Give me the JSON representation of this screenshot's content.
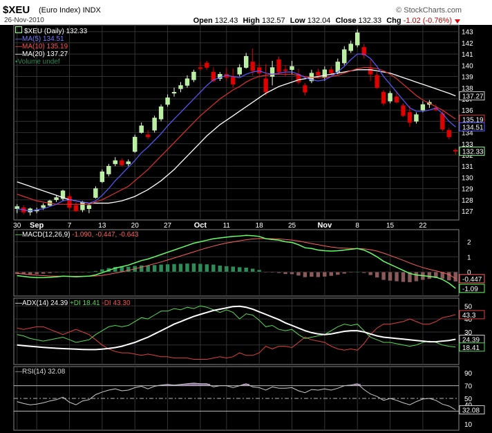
{
  "header": {
    "symbol": "$XEU",
    "name": "(Euro Index)",
    "exchange": "INDX",
    "date": "26-Nov-2010",
    "brand": "© StockCharts.com",
    "open_label": "Open",
    "open": "132.43",
    "high_label": "High",
    "high": "132.57",
    "low_label": "Low",
    "low": "132.04",
    "close_label": "Close",
    "close": "132.33",
    "chg_label": "Chg",
    "chg": "-1.02 (-0.76%)"
  },
  "legend": {
    "price": "$XEU (Daily) 132.33",
    "ma5": "MA(5) 134.51",
    "ma10": "MA(10) 135.19",
    "ma20": "MA(20) 137.27",
    "volume": "Volume undef",
    "macd_label": "MACD(12,26,9)",
    "macd_vals": "-1.090, -0.447, -0.643",
    "adx_label": "ADX(14) 24.39",
    "pdi_label": "+DI 18.41",
    "mdi_label": "-DI 43.30",
    "rsi_label": "RSI(14) 32.08"
  },
  "colors": {
    "up": "#b8f0a0",
    "down": "#e00000",
    "ma5": "#5a5aff",
    "ma10": "#e03030",
    "ma20": "#ffffff",
    "volume": "#2e8b57",
    "macd": "#66ff66",
    "signal": "#ff6060",
    "hist": "#2e8b57",
    "adx": "#ffffff",
    "pdi": "#55dd55",
    "mdi": "#e04040",
    "rsi": "#cccccc",
    "rsi_fill": "#8a6a9a"
  },
  "chart_data": {
    "type": "candlestick",
    "x_labels": [
      "30",
      "Sep",
      "7",
      "13",
      "20",
      "27",
      "Oct",
      "11",
      "18",
      "25",
      "Nov",
      "8",
      "15",
      "22"
    ],
    "price_axis": {
      "ticks": [
        127,
        128,
        129,
        130,
        131,
        132,
        133,
        134,
        135,
        136,
        137,
        138,
        139,
        140,
        141,
        142,
        143
      ],
      "range": [
        126.2,
        143.6
      ]
    },
    "end_tags": {
      "ma20": 137.27,
      "ma10": 135.19,
      "ma5": 134.51,
      "close": 132.33
    },
    "candles": [
      [
        127.2,
        127.6,
        126.8,
        127.4
      ],
      [
        127.3,
        127.5,
        126.7,
        126.9
      ],
      [
        126.9,
        127.3,
        126.6,
        127.2
      ],
      [
        127.0,
        127.3,
        126.8,
        127.1
      ],
      [
        127.3,
        127.7,
        127.1,
        127.5
      ],
      [
        127.5,
        128.0,
        127.4,
        127.9
      ],
      [
        128.0,
        128.4,
        127.8,
        128.2
      ],
      [
        128.1,
        128.9,
        127.9,
        128.8
      ],
      [
        128.3,
        128.6,
        127.1,
        127.3
      ],
      [
        127.5,
        127.8,
        126.9,
        127.0
      ],
      [
        127.1,
        127.9,
        126.9,
        127.8
      ],
      [
        127.2,
        127.7,
        126.8,
        127.5
      ],
      [
        128.2,
        129.2,
        128.1,
        129.0
      ],
      [
        129.6,
        130.7,
        129.5,
        130.5
      ],
      [
        130.3,
        131.2,
        130.1,
        131.0
      ],
      [
        131.2,
        131.8,
        131.0,
        131.5
      ],
      [
        131.5,
        131.7,
        131.0,
        131.1
      ],
      [
        131.2,
        131.6,
        131.0,
        131.4
      ],
      [
        132.3,
        133.8,
        132.2,
        133.6
      ],
      [
        134.0,
        134.9,
        133.9,
        134.6
      ],
      [
        133.8,
        134.2,
        133.4,
        133.6
      ],
      [
        134.2,
        135.5,
        134.0,
        135.3
      ],
      [
        135.2,
        136.5,
        135.0,
        136.3
      ],
      [
        136.5,
        137.4,
        136.3,
        137.1
      ],
      [
        137.5,
        138.0,
        137.2,
        137.6
      ],
      [
        137.9,
        138.5,
        137.6,
        138.2
      ],
      [
        138.2,
        139.1,
        138.0,
        138.8
      ],
      [
        138.7,
        139.6,
        138.5,
        139.4
      ],
      [
        139.8,
        140.3,
        139.5,
        139.7
      ],
      [
        140.2,
        140.4,
        139.6,
        139.8
      ],
      [
        139.4,
        139.8,
        138.5,
        138.6
      ],
      [
        138.8,
        139.4,
        138.6,
        139.2
      ],
      [
        139.2,
        139.8,
        138.6,
        138.9
      ],
      [
        139.0,
        139.7,
        138.0,
        138.3
      ],
      [
        139.2,
        140.1,
        139.0,
        139.8
      ],
      [
        139.8,
        141.1,
        139.7,
        140.8
      ],
      [
        140.3,
        141.5,
        139.1,
        139.5
      ],
      [
        139.8,
        140.2,
        139.0,
        139.3
      ],
      [
        138.8,
        140.1,
        137.3,
        137.6
      ],
      [
        139.0,
        140.4,
        138.2,
        139.8
      ],
      [
        140.5,
        140.8,
        139.2,
        139.4
      ],
      [
        139.6,
        140.0,
        139.0,
        139.5
      ],
      [
        139.6,
        140.4,
        139.2,
        139.9
      ],
      [
        139.2,
        139.7,
        138.3,
        138.5
      ],
      [
        138.2,
        138.4,
        137.3,
        137.6
      ],
      [
        138.6,
        139.6,
        138.4,
        139.3
      ],
      [
        139.4,
        139.7,
        138.8,
        139.1
      ],
      [
        138.9,
        139.9,
        138.6,
        139.6
      ],
      [
        139.6,
        139.9,
        139.0,
        139.3
      ],
      [
        139.4,
        140.6,
        139.2,
        140.3
      ],
      [
        140.2,
        141.7,
        140.0,
        141.4
      ],
      [
        141.3,
        142.2,
        141.1,
        141.9
      ],
      [
        141.8,
        143.2,
        141.6,
        142.9
      ],
      [
        141.6,
        141.9,
        140.6,
        140.9
      ],
      [
        139.7,
        140.5,
        138.6,
        139.2
      ],
      [
        139.1,
        139.4,
        137.9,
        138.0
      ],
      [
        137.6,
        137.8,
        136.4,
        136.6
      ],
      [
        136.8,
        137.7,
        136.6,
        137.5
      ],
      [
        137.2,
        137.7,
        136.6,
        136.7
      ],
      [
        136.4,
        136.6,
        135.4,
        135.5
      ],
      [
        135.8,
        136.4,
        134.5,
        134.9
      ],
      [
        135.0,
        135.8,
        134.8,
        135.6
      ],
      [
        136.0,
        136.8,
        135.8,
        136.5
      ],
      [
        136.5,
        136.9,
        136.2,
        136.7
      ],
      [
        136.2,
        136.5,
        135.9,
        136.0
      ],
      [
        135.7,
        135.9,
        134.1,
        134.3
      ],
      [
        134.2,
        134.4,
        133.4,
        133.6
      ],
      [
        132.43,
        132.57,
        132.04,
        132.33
      ]
    ],
    "ma5": [
      127.2,
      127.1,
      127.0,
      127.1,
      127.2,
      127.4,
      127.6,
      127.9,
      128.0,
      127.9,
      127.8,
      127.7,
      127.9,
      128.4,
      129.0,
      129.7,
      130.3,
      130.9,
      131.5,
      132.2,
      132.7,
      133.3,
      133.9,
      134.6,
      135.2,
      135.8,
      136.4,
      137.0,
      137.6,
      138.2,
      138.7,
      138.9,
      139.1,
      139.0,
      138.9,
      139.2,
      139.4,
      139.5,
      139.3,
      139.2,
      139.3,
      139.4,
      139.4,
      139.2,
      138.9,
      138.7,
      138.6,
      138.7,
      139.0,
      139.4,
      139.9,
      140.5,
      141.0,
      141.0,
      140.6,
      139.9,
      139.0,
      138.3,
      137.6,
      136.9,
      136.2,
      135.9,
      135.9,
      136.0,
      136.2,
      135.7,
      135.0,
      134.5
    ],
    "ma10": [
      128.5,
      128.3,
      128.1,
      127.9,
      127.8,
      127.7,
      127.6,
      127.6,
      127.6,
      127.6,
      127.6,
      127.6,
      127.8,
      128.0,
      128.3,
      128.6,
      128.9,
      129.2,
      129.7,
      130.2,
      130.7,
      131.3,
      131.9,
      132.5,
      133.1,
      133.7,
      134.3,
      134.9,
      135.5,
      136.0,
      136.5,
      137.0,
      137.4,
      137.8,
      138.1,
      138.5,
      138.8,
      139.0,
      139.1,
      139.2,
      139.2,
      139.2,
      139.2,
      139.1,
      139.0,
      138.9,
      138.9,
      138.9,
      139.0,
      139.1,
      139.3,
      139.5,
      139.7,
      139.8,
      139.8,
      139.7,
      139.5,
      139.2,
      138.8,
      138.3,
      137.8,
      137.3,
      136.9,
      136.6,
      136.3,
      136.0,
      135.6,
      135.2
    ],
    "ma20": [
      129.6,
      129.4,
      129.2,
      129.0,
      128.8,
      128.6,
      128.4,
      128.2,
      128.0,
      127.9,
      127.8,
      127.7,
      127.7,
      127.7,
      127.7,
      127.8,
      127.9,
      128.1,
      128.3,
      128.6,
      128.9,
      129.3,
      129.7,
      130.2,
      130.7,
      131.3,
      131.9,
      132.5,
      133.1,
      133.7,
      134.2,
      134.7,
      135.1,
      135.5,
      135.9,
      136.3,
      136.7,
      137.1,
      137.5,
      137.8,
      138.1,
      138.3,
      138.5,
      138.7,
      138.8,
      138.9,
      139.0,
      139.1,
      139.2,
      139.3,
      139.4,
      139.5,
      139.6,
      139.6,
      139.6,
      139.5,
      139.4,
      139.3,
      139.1,
      138.9,
      138.7,
      138.5,
      138.3,
      138.1,
      137.9,
      137.7,
      137.5,
      137.27
    ],
    "macd": {
      "ticks": [
        2,
        1,
        0
      ],
      "range": [
        -1.6,
        2.8
      ],
      "end_tags": {
        "signal": -0.447,
        "macd": -1.09
      },
      "macd": [
        -0.25,
        -0.3,
        -0.35,
        -0.38,
        -0.38,
        -0.36,
        -0.33,
        -0.28,
        -0.3,
        -0.32,
        -0.3,
        -0.28,
        -0.2,
        -0.05,
        0.1,
        0.25,
        0.35,
        0.45,
        0.6,
        0.75,
        0.85,
        1.0,
        1.15,
        1.3,
        1.45,
        1.6,
        1.75,
        1.9,
        2.0,
        2.1,
        2.2,
        2.25,
        2.3,
        2.35,
        2.38,
        2.42,
        2.4,
        2.35,
        2.2,
        2.15,
        2.1,
        2.0,
        1.95,
        1.8,
        1.6,
        1.55,
        1.45,
        1.4,
        1.38,
        1.4,
        1.45,
        1.5,
        1.55,
        1.45,
        1.25,
        1.0,
        0.7,
        0.5,
        0.3,
        0.1,
        -0.1,
        -0.2,
        -0.25,
        -0.3,
        -0.35,
        -0.5,
        -0.75,
        -1.09
      ],
      "signal": [
        -0.1,
        -0.14,
        -0.18,
        -0.22,
        -0.25,
        -0.27,
        -0.28,
        -0.28,
        -0.29,
        -0.29,
        -0.29,
        -0.29,
        -0.27,
        -0.23,
        -0.16,
        -0.08,
        0.0,
        0.1,
        0.2,
        0.31,
        0.42,
        0.54,
        0.66,
        0.79,
        0.92,
        1.06,
        1.19,
        1.33,
        1.46,
        1.59,
        1.71,
        1.82,
        1.91,
        1.99,
        2.06,
        2.13,
        2.18,
        2.21,
        2.21,
        2.2,
        2.18,
        2.15,
        2.11,
        2.05,
        1.96,
        1.88,
        1.8,
        1.72,
        1.65,
        1.6,
        1.57,
        1.55,
        1.55,
        1.53,
        1.47,
        1.38,
        1.24,
        1.09,
        0.93,
        0.77,
        0.59,
        0.43,
        0.29,
        0.17,
        0.07,
        -0.04,
        -0.18,
        -0.447
      ]
    },
    "adx": {
      "ticks": [
        50,
        40,
        30,
        20
      ],
      "range": [
        5,
        56
      ],
      "end_tags": {
        "mdi": 43.3,
        "adx": 24.39,
        "pdi": 18.41
      },
      "adx": [
        20,
        19.5,
        19,
        18.6,
        18.2,
        17.8,
        17.5,
        17.2,
        17,
        16.8,
        16.6,
        16.5,
        16.5,
        16.8,
        17.3,
        18,
        19,
        20.5,
        22,
        24,
        26,
        28.5,
        31,
        33.5,
        36,
        38,
        40,
        42,
        43.5,
        45,
        46.5,
        47.5,
        48.5,
        49.5,
        49.8,
        49,
        47.5,
        45.5,
        43.5,
        41.5,
        39.5,
        37,
        35,
        33,
        31,
        29.5,
        28.5,
        28,
        28.5,
        29.5,
        30.5,
        31,
        31,
        30,
        28.5,
        27,
        26,
        25.5,
        25,
        24.5,
        24,
        23.5,
        23,
        22.5,
        22.5,
        23,
        23.5,
        24.39
      ],
      "pdi": [
        28,
        27,
        25,
        24,
        23,
        24,
        25,
        26,
        24,
        22,
        23,
        24,
        28,
        31,
        34,
        35,
        34,
        35,
        38,
        41,
        40,
        43,
        46,
        46,
        48,
        47,
        49,
        48,
        50,
        49,
        47,
        45,
        47,
        45,
        40,
        44,
        43,
        39,
        34,
        35,
        32,
        31,
        32,
        28,
        25,
        26,
        27,
        28,
        31,
        34,
        36,
        35,
        36,
        31,
        26,
        24,
        22,
        22,
        21,
        20,
        19,
        20,
        22,
        23,
        22,
        20,
        19,
        18.41
      ],
      "mdi": [
        33,
        32,
        33,
        34,
        34,
        32,
        30,
        28,
        30,
        32,
        30,
        28,
        24,
        20,
        17,
        15,
        14,
        14,
        13,
        12,
        13,
        12,
        11,
        11,
        10,
        10,
        10,
        9,
        9,
        9,
        10,
        11,
        10,
        11,
        14,
        12,
        12,
        14,
        19,
        17,
        19,
        19,
        18,
        22,
        26,
        24,
        23,
        22,
        19,
        17,
        16,
        17,
        16,
        21,
        28,
        33,
        36,
        36,
        37,
        38,
        40,
        38,
        36,
        36,
        38,
        41,
        42,
        43.3
      ]
    },
    "rsi": {
      "ticks": [
        90,
        70,
        50,
        40,
        30,
        10
      ],
      "range": [
        0,
        100
      ],
      "reference_lines": [
        70,
        50,
        30
      ],
      "end_tag": 32.08,
      "values": [
        45,
        42,
        40,
        41,
        43,
        46,
        48,
        52,
        44,
        40,
        46,
        48,
        56,
        60,
        63,
        65,
        62,
        63,
        67,
        69,
        65,
        69,
        71,
        72,
        71,
        72,
        73,
        74,
        73,
        73,
        68,
        70,
        70,
        67,
        70,
        73,
        68,
        67,
        63,
        68,
        66,
        66,
        67,
        62,
        59,
        64,
        63,
        65,
        63,
        66,
        70,
        71,
        73,
        64,
        57,
        53,
        47,
        50,
        47,
        43,
        40,
        45,
        49,
        50,
        47,
        41,
        38,
        32.08
      ]
    }
  }
}
